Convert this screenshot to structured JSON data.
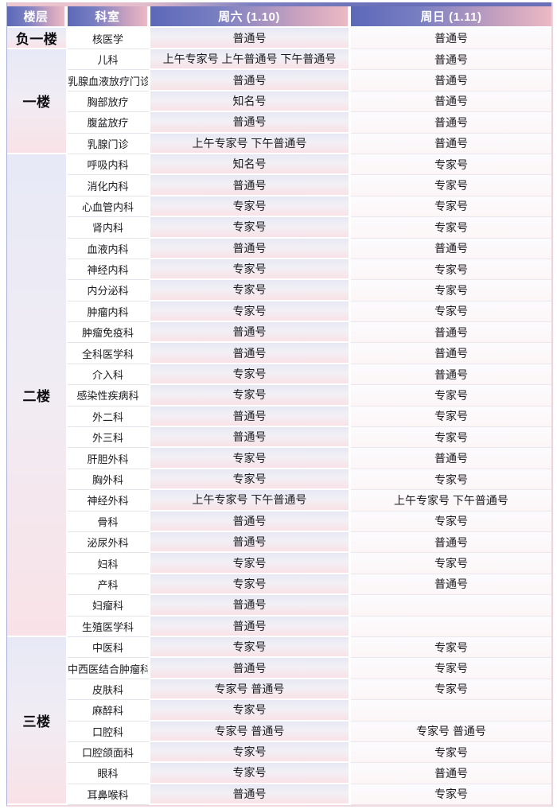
{
  "colors": {
    "header_gradient_start": "#5c68b8",
    "header_gradient_end": "#ecb9c5",
    "cell_tint_top": "#e7e8f5",
    "cell_tint_bottom": "#f8e2e7",
    "header_text": "#ffffff",
    "body_text": "#1b1b1f"
  },
  "table": {
    "columns": [
      {
        "label": "楼层"
      },
      {
        "label": "科室"
      },
      {
        "label": "周六 (1.10)"
      },
      {
        "label": "周日 (1.11)"
      }
    ],
    "groups": [
      {
        "floor": "负一楼",
        "rows": [
          {
            "dept": "核医学",
            "sat": "普通号",
            "sun": "普通号"
          }
        ]
      },
      {
        "floor": "一楼",
        "rows": [
          {
            "dept": "儿科",
            "sat": "上午专家号 上午普通号 下午普通号",
            "sun": "普通号"
          },
          {
            "dept": "乳腺血液放疗门诊",
            "sat": "普通号",
            "sun": "普通号"
          },
          {
            "dept": "胸部放疗",
            "sat": "知名号",
            "sun": "普通号"
          },
          {
            "dept": "腹盆放疗",
            "sat": "普通号",
            "sun": "普通号"
          },
          {
            "dept": "乳腺门诊",
            "sat": "上午专家号 下午普通号",
            "sun": "普通号"
          }
        ]
      },
      {
        "floor": "二楼",
        "rows": [
          {
            "dept": "呼吸内科",
            "sat": "知名号",
            "sun": "专家号"
          },
          {
            "dept": "消化内科",
            "sat": "普通号",
            "sun": "专家号"
          },
          {
            "dept": "心血管内科",
            "sat": "专家号",
            "sun": "专家号"
          },
          {
            "dept": "肾内科",
            "sat": "专家号",
            "sun": "专家号"
          },
          {
            "dept": "血液内科",
            "sat": "普通号",
            "sun": "普通号"
          },
          {
            "dept": "神经内科",
            "sat": "专家号",
            "sun": "专家号"
          },
          {
            "dept": "内分泌科",
            "sat": "专家号",
            "sun": "专家号"
          },
          {
            "dept": "肿瘤内科",
            "sat": "专家号",
            "sun": "专家号"
          },
          {
            "dept": "肿瘤免疫科",
            "sat": "普通号",
            "sun": "普通号"
          },
          {
            "dept": "全科医学科",
            "sat": "普通号",
            "sun": "普通号"
          },
          {
            "dept": "介入科",
            "sat": "专家号",
            "sun": "普通号"
          },
          {
            "dept": "感染性疾病科",
            "sat": "专家号",
            "sun": "专家号"
          },
          {
            "dept": "外二科",
            "sat": "普通号",
            "sun": "专家号"
          },
          {
            "dept": "外三科",
            "sat": "普通号",
            "sun": "专家号"
          },
          {
            "dept": "肝胆外科",
            "sat": "专家号",
            "sun": "普通号"
          },
          {
            "dept": "胸外科",
            "sat": "专家号",
            "sun": "专家号"
          },
          {
            "dept": "神经外科",
            "sat": "上午专家号 下午普通号",
            "sun": "上午专家号 下午普通号"
          },
          {
            "dept": "骨科",
            "sat": "普通号",
            "sun": "专家号"
          },
          {
            "dept": "泌尿外科",
            "sat": "普通号",
            "sun": "普通号"
          },
          {
            "dept": "妇科",
            "sat": "专家号",
            "sun": "专家号"
          },
          {
            "dept": "产科",
            "sat": "专家号",
            "sun": "普通号"
          },
          {
            "dept": "妇瘤科",
            "sat": "普通号",
            "sun": ""
          },
          {
            "dept": "生殖医学科",
            "sat": "普通号",
            "sun": ""
          }
        ]
      },
      {
        "floor": "三楼",
        "rows": [
          {
            "dept": "中医科",
            "sat": "专家号",
            "sun": "专家号"
          },
          {
            "dept": "中西医结合肿瘤科",
            "sat": "普通号",
            "sun": "专家号"
          },
          {
            "dept": "皮肤科",
            "sat": "专家号 普通号",
            "sun": "专家号"
          },
          {
            "dept": "麻醉科",
            "sat": "专家号",
            "sun": ""
          },
          {
            "dept": "口腔科",
            "sat": "专家号 普通号",
            "sun": "专家号 普通号"
          },
          {
            "dept": "口腔颌面科",
            "sat": "专家号",
            "sun": "专家号"
          },
          {
            "dept": "眼科",
            "sat": "专家号",
            "sun": "普通号"
          },
          {
            "dept": "耳鼻喉科",
            "sat": "普通号",
            "sun": "专家号"
          }
        ]
      }
    ]
  }
}
